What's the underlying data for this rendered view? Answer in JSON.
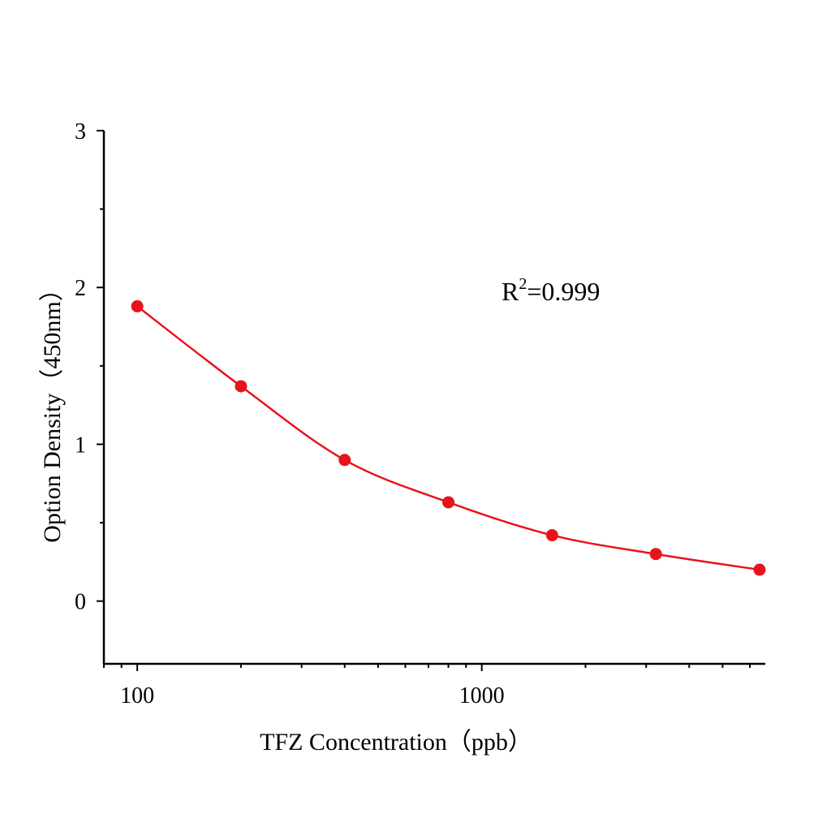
{
  "chart_data": {
    "type": "scatter",
    "title": "",
    "xlabel": "TFZ Concentration（ppb）",
    "ylabel": "Option Density（450nm）",
    "xscale": "log",
    "xlim": [
      80,
      6650
    ],
    "ylim": [
      -0.4,
      3
    ],
    "x_ticks": [
      100,
      1000
    ],
    "x_tick_labels": [
      "100",
      "1000"
    ],
    "y_ticks": [
      0,
      1,
      2,
      3
    ],
    "y_tick_labels": [
      "0",
      "1",
      "2",
      "3"
    ],
    "grid": false,
    "annotation": {
      "base": "R",
      "sup": "2",
      "rest": "=0.999"
    },
    "series": [
      {
        "x": [
          100,
          200,
          400,
          800,
          1600,
          3200,
          6400
        ],
        "y": [
          1.88,
          1.37,
          0.9,
          0.63,
          0.42,
          0.3,
          0.2
        ],
        "color": "#e8141c",
        "markers": true,
        "fit_curve": true
      }
    ]
  }
}
